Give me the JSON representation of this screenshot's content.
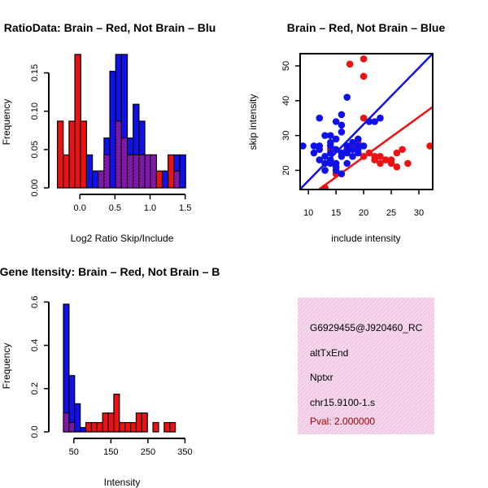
{
  "colors": {
    "red": "#ee1111",
    "blue": "#1010e8",
    "purple": "#8a1ab0",
    "border": "#000000",
    "pink_bg": "#f7d9ee",
    "pval": "#a00000"
  },
  "chart_data": [
    {
      "id": "ratio_hist",
      "type": "histogram",
      "title": "RatioData: Brain – Red, Not Brain – Blu",
      "xlabel": "Log2 Ratio Skip/Include",
      "ylabel": "Frequency",
      "xlim": [
        -0.35,
        1.55
      ],
      "ylim": [
        0,
        0.175
      ],
      "xticks": [
        0.0,
        0.5,
        1.0,
        1.5
      ],
      "xtick_labels": [
        "0.0",
        "0.5",
        "1.0",
        "1.5"
      ],
      "yticks": [
        0.0,
        0.05,
        0.1,
        0.15
      ],
      "ytick_labels": [
        "0.00",
        "0.05",
        "0.10",
        "0.15"
      ],
      "bin_width": 0.083,
      "bin_starts": [
        -0.32,
        -0.237,
        -0.154,
        -0.071,
        0.012,
        0.095,
        0.178,
        0.261,
        0.344,
        0.427,
        0.51,
        0.593,
        0.676,
        0.759,
        0.842,
        0.925,
        1.008,
        1.091,
        1.174,
        1.257,
        1.34,
        1.423
      ],
      "series": [
        {
          "name": "Brain",
          "color": "red",
          "values": [
            0.087,
            0.043,
            0.087,
            0.174,
            0.087,
            0.0,
            0.0,
            0.022,
            0.043,
            0.0,
            0.087,
            0.065,
            0.043,
            0.043,
            0.043,
            0.043,
            0.043,
            0.022,
            0.0,
            0.043,
            0.022,
            0.0
          ]
        },
        {
          "name": "Not Brain",
          "color": "blue",
          "values": [
            0.0,
            0.0,
            0.0,
            0.0,
            0.0,
            0.043,
            0.022,
            0.022,
            0.065,
            0.152,
            0.174,
            0.174,
            0.065,
            0.109,
            0.087,
            0.043,
            0.043,
            0.0,
            0.022,
            0.0,
            0.043,
            0.043
          ]
        }
      ]
    },
    {
      "id": "skip_scatter",
      "type": "scatter",
      "title": "Brain – Red, Not Brain – Blue",
      "xlabel": "include intensity",
      "ylabel": "skip intensity",
      "xlim": [
        8.5,
        32.5
      ],
      "ylim": [
        14.5,
        53.5
      ],
      "xticks": [
        10,
        15,
        20,
        25,
        30
      ],
      "yticks": [
        20,
        30,
        40,
        50
      ],
      "series": [
        {
          "name": "Brain",
          "color": "red",
          "points": [
            [
              17.5,
              50.5
            ],
            [
              20,
              52
            ],
            [
              20,
              47
            ],
            [
              16,
              25
            ],
            [
              17,
              26
            ],
            [
              18,
              27
            ],
            [
              19,
              28
            ],
            [
              20,
              24
            ],
            [
              21,
              25
            ],
            [
              22,
              23
            ],
            [
              22,
              24
            ],
            [
              23,
              22
            ],
            [
              23,
              24
            ],
            [
              24,
              23
            ],
            [
              25,
              22
            ],
            [
              25,
              23
            ],
            [
              26,
              21
            ],
            [
              26,
              25
            ],
            [
              27,
              26
            ],
            [
              28,
              22
            ],
            [
              20,
              35
            ],
            [
              32,
              27
            ],
            [
              14,
              26
            ],
            [
              15,
              19
            ],
            [
              13,
              15
            ]
          ],
          "fit": [
            [
              8.5,
              10.6
            ],
            [
              32.5,
              38.2
            ]
          ]
        },
        {
          "name": "Not Brain",
          "color": "blue",
          "points": [
            [
              9,
              27
            ],
            [
              11,
              27
            ],
            [
              11,
              25
            ],
            [
              12,
              27
            ],
            [
              12,
              35
            ],
            [
              12,
              26
            ],
            [
              12,
              23
            ],
            [
              13,
              30
            ],
            [
              13,
              22
            ],
            [
              13,
              20
            ],
            [
              13,
              24
            ],
            [
              14,
              25
            ],
            [
              14,
              28
            ],
            [
              14,
              30
            ],
            [
              14,
              22
            ],
            [
              14,
              23
            ],
            [
              14,
              27
            ],
            [
              15,
              34
            ],
            [
              15,
              29
            ],
            [
              15,
              26
            ],
            [
              15,
              22
            ],
            [
              15,
              21
            ],
            [
              15,
              20
            ],
            [
              16,
              36
            ],
            [
              16,
              33
            ],
            [
              16,
              31
            ],
            [
              16,
              25
            ],
            [
              16,
              24
            ],
            [
              17,
              41
            ],
            [
              17,
              27
            ],
            [
              17,
              26
            ],
            [
              17,
              22
            ],
            [
              18,
              26
            ],
            [
              18,
              24
            ],
            [
              19,
              29
            ],
            [
              19,
              27
            ],
            [
              19,
              25
            ],
            [
              20,
              27
            ],
            [
              21,
              34
            ],
            [
              22,
              34
            ],
            [
              23,
              35
            ],
            [
              16,
              19
            ],
            [
              18,
              28
            ],
            [
              17,
              25
            ],
            [
              19,
              26
            ]
          ],
          "fit": [
            [
              8.5,
              14.6
            ],
            [
              32.5,
              53.5
            ]
          ]
        }
      ]
    },
    {
      "id": "intensity_hist",
      "type": "histogram",
      "title": "Gene Itensity: Brain – Red, Not Brain – B",
      "xlabel": "Intensity",
      "ylabel": "Frequency",
      "xlim": [
        0,
        360
      ],
      "ylim": [
        0,
        0.62
      ],
      "xticks": [
        50,
        150,
        250,
        350
      ],
      "xtick_labels": [
        "50",
        "150",
        "250",
        "350"
      ],
      "yticks": [
        0.0,
        0.2,
        0.4,
        0.6
      ],
      "ytick_labels": [
        "0.0",
        "0.2",
        "0.4",
        "0.6"
      ],
      "bin_width": 15.1,
      "bin_starts": [
        22,
        37.1,
        52.2,
        67.3,
        82.4,
        97.5,
        112.6,
        127.7,
        142.8,
        157.9,
        173.0,
        188.1,
        203.2,
        218.3,
        233.4,
        248.5,
        263.6,
        278.7,
        293.8,
        308.9,
        324.0
      ],
      "series": [
        {
          "name": "Brain",
          "color": "red",
          "values": [
            0.087,
            0.043,
            0.0,
            0.0,
            0.043,
            0.043,
            0.043,
            0.087,
            0.087,
            0.174,
            0.043,
            0.043,
            0.043,
            0.087,
            0.087,
            0.0,
            0.043,
            0.0,
            0.043,
            0.043,
            0.0
          ]
        },
        {
          "name": "Not Brain",
          "color": "blue",
          "values": [
            0.59,
            0.26,
            0.13,
            0.02,
            0.0,
            0.0,
            0.0,
            0.0,
            0.0,
            0.0,
            0.0,
            0.0,
            0.0,
            0.0,
            0.0,
            0.0,
            0.0,
            0.0,
            0.0,
            0.0,
            0.0
          ]
        }
      ]
    }
  ],
  "info_panel": {
    "lines": [
      "G6929455@J920460_RC",
      "altTxEnd",
      "Nptxr",
      "chr15.9100-1.s"
    ],
    "pval": "Pval: 2.000000"
  }
}
